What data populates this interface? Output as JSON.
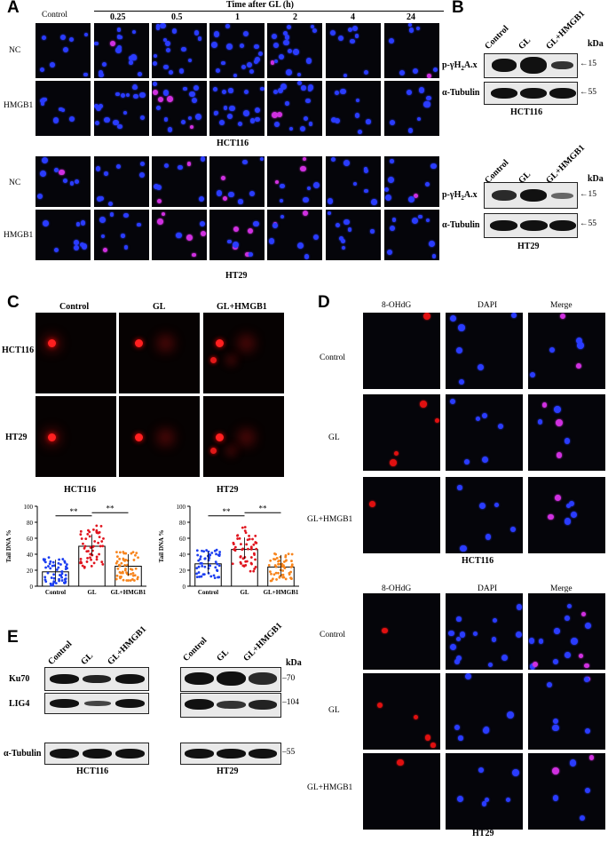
{
  "panels": {
    "A": "A",
    "B": "B",
    "C": "C",
    "D": "D",
    "E": "E"
  },
  "panelA": {
    "control_label": "Control",
    "time_header": "Time after GL (h)",
    "times": [
      "0.25",
      "0.5",
      "1",
      "2",
      "4",
      "24"
    ],
    "rows": [
      "NC",
      "HMGB1"
    ],
    "cell_lines": [
      "HCT116",
      "HT29"
    ]
  },
  "panelB": {
    "lanes": [
      "Control",
      "GL",
      "GL+HMGB1"
    ],
    "kda": "kDa",
    "proteins": [
      "p-γH2A.x",
      "α-Tubulin"
    ],
    "p_main": "p-γH",
    "p_sub": "2",
    "p_tail": "A.x",
    "markers": [
      "15",
      "55"
    ],
    "cell_lines": [
      "HCT116",
      "HT29"
    ]
  },
  "panelC": {
    "columns": [
      "Control",
      "GL",
      "GL+HMGB1"
    ],
    "rows": [
      "HCT116",
      "HT29"
    ],
    "sig": "**"
  },
  "chart_data": [
    {
      "type": "bar",
      "title": "HCT116",
      "ylabel": "Tail DNA %",
      "categories": [
        "Control",
        "GL",
        "GL+HMGB1"
      ],
      "values": [
        18,
        50,
        25
      ],
      "ylim": [
        0,
        100
      ],
      "yticks": [
        0,
        20,
        40,
        60,
        80,
        100
      ],
      "colors": [
        "#1b3df0",
        "#e0141e",
        "#f7841c"
      ],
      "significance": [
        "**",
        "**"
      ]
    },
    {
      "type": "bar",
      "title": "HT29",
      "ylabel": "Tail DNA %",
      "categories": [
        "Control",
        "GL",
        "GL+HMGB1"
      ],
      "values": [
        28,
        46,
        24
      ],
      "ylim": [
        0,
        100
      ],
      "yticks": [
        0,
        20,
        40,
        60,
        80,
        100
      ],
      "colors": [
        "#1b3df0",
        "#e0141e",
        "#f7841c"
      ],
      "significance": [
        "**",
        "**"
      ]
    }
  ],
  "panelD": {
    "columns": [
      "8-OHdG",
      "DAPI",
      "Merge"
    ],
    "rows": [
      "Control",
      "GL",
      "GL+HMGB1"
    ],
    "cell_lines": [
      "HCT116",
      "HT29"
    ]
  },
  "panelE": {
    "lanes": [
      "Control",
      "GL",
      "GL+HMGB1"
    ],
    "proteins": [
      "Ku70",
      "LIG4",
      "α-Tubulin"
    ],
    "kda": "kDa",
    "markers": [
      "70",
      "104",
      "55"
    ],
    "cell_lines": [
      "HCT116",
      "HT29"
    ]
  },
  "colors": {
    "dapi": "#2a3cff",
    "red": "#e01010",
    "magenta": "#d030e0",
    "bg": "#05050a"
  }
}
